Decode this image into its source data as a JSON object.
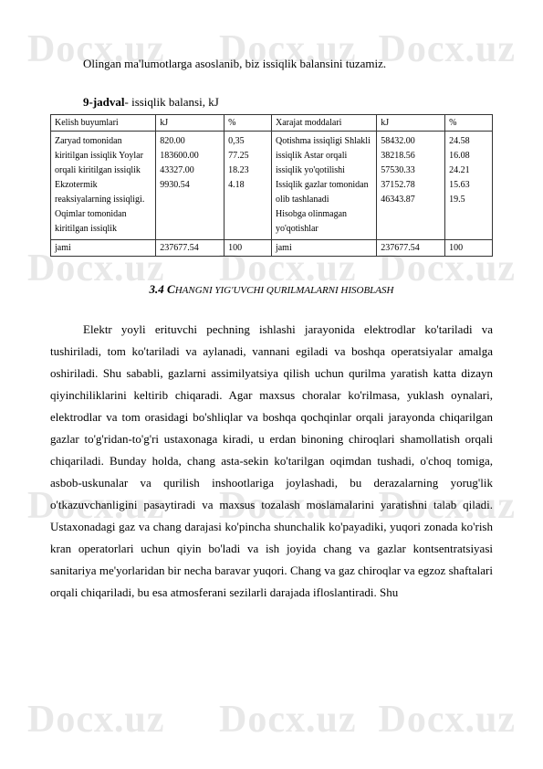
{
  "watermark": "Docx.uz",
  "intro": "Olingan ma'lumotlarga asoslanib, biz issiqlik balansini tuzamiz.",
  "table_caption_bold": "9-jadval",
  "table_caption_rest": "- issiqlik balansi, kJ",
  "table": {
    "headers": [
      "Kelish buyumlari",
      "kJ",
      "%",
      "Xarajat moddalari",
      "kJ",
      "%"
    ],
    "row_left_labels": "Zaryad tomonidan kiritilgan issiqlik Yoylar orqali kiritilgan issiqlik Ekzotermik reaksiyalarning issiqligi.\nOqimlar tomonidan kiritilgan issiqlik",
    "row_left_kj": "820.00\n183600.00\n43327.00\n9930.54",
    "row_left_pct": "0,35\n77.25\n18.23\n4.18",
    "row_right_labels": "Qotishma issiqligi Shlakli issiqlik Astar orqali issiqlik yo'qotilishi Issiqlik gazlar tomonidan olib tashlanadi\nHisobga olinmagan yo'qotishlar",
    "row_right_kj": "58432.00\n38218.56\n57530.33\n37152.78\n46343.87",
    "row_right_pct": "24.58\n16.08\n24.21\n15.63\n19.5",
    "total_label_left": "jami",
    "total_kj_left": "237677.54",
    "total_pct_left": "100",
    "total_label_right": "jami",
    "total_kj_right": "237677.54",
    "total_pct_right": "100"
  },
  "section_heading_leading": "3.4 C",
  "section_heading_smallcaps": "HANGNI YIG'UVCHI QURILMALARNI HISOBLASH",
  "body": "Elektr yoyli erituvchi pechning ishlashi jarayonida elektrodlar ko'tariladi va tushiriladi, tom ko'tariladi va aylanadi, vannani egiladi va boshqa operatsiyalar amalga oshiriladi. Shu sababli, gazlarni assimilyatsiya qilish uchun qurilma yaratish katta dizayn qiyinchiliklarini keltirib chiqaradi. Agar maxsus choralar ko'rilmasa, yuklash oynalari, elektrodlar va tom orasidagi bo'shliqlar va boshqa qochqinlar orqali jarayonda chiqarilgan gazlar to'g'ridan-to'g'ri ustaxonaga kiradi, u erdan binoning chiroqlari shamollatish orqali chiqariladi. Bunday holda, chang asta-sekin ko'tarilgan oqimdan tushadi, o'choq tomiga, asbob-uskunalar va qurilish inshootlariga joylashadi, bu derazalarning yorug'lik o'tkazuvchanligini pasaytiradi va maxsus tozalash moslamalarini yaratishni talab qiladi. Ustaxonadagi gaz va chang darajasi ko'pincha shunchalik ko'payadiki, yuqori zonada ko'rish kran operatorlari uchun qiyin bo'ladi va ish joyida chang va gazlar kontsentratsiyasi sanitariya me'yorlaridan bir necha baravar yuqori. Chang va gaz chiroqlar va egzoz shaftalari orqali chiqariladi, bu esa atmosferani sezilarli darajada ifloslantiradi. Shu"
}
